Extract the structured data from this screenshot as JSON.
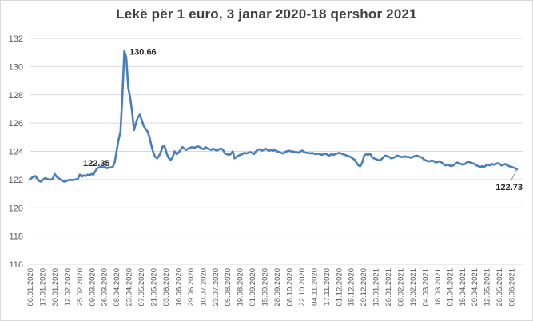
{
  "chart_data": {
    "type": "line",
    "title": "Lekë për 1 euro, 3 janar 2020-18 qershor 2021",
    "xlabel": "",
    "ylabel": "",
    "ylim": [
      116,
      132
    ],
    "yticks": [
      116,
      118,
      120,
      122,
      124,
      126,
      128,
      130,
      132
    ],
    "grid": true,
    "series_color": "#4a7ebb",
    "x_tick_labels": [
      "06.01.2020",
      "17.01.2020",
      "30.01.2020",
      "12.02.2020",
      "25.02.2020",
      "09.03.2020",
      "26.03.2020",
      "08.04.2020",
      "23.04.2020",
      "07.05.2020",
      "21.05.2020",
      "03.06.2020",
      "16.06.2020",
      "29.06.2020",
      "10.07.2020",
      "23.07.2020",
      "05.08.2020",
      "19.08.2020",
      "01.09.2020",
      "15.09.2020",
      "28.09.2020",
      "08.10.2020",
      "22.10.2020",
      "04.11.2020",
      "17.11.2020",
      "01.12.2020",
      "15.12.2020",
      "29.12.2020",
      "13.01.2021",
      "26.01.2021",
      "08.02.2021",
      "19.02.2021",
      "04.03.2021",
      "18.03.2021",
      "01.04.2021",
      "15.04.2021",
      "29.04.2021",
      "12.05.2021",
      "26.05.2021",
      "08.06.2021"
    ],
    "annotations": [
      {
        "label": "130.66",
        "x": "26.03.2020"
      },
      {
        "label": "122.35",
        "x": "06.03.2020"
      },
      {
        "label": "122.73",
        "x": "18.06.2021"
      }
    ],
    "series": [
      {
        "values": [
          122.0,
          122.1,
          122.2,
          122.25,
          122.05,
          121.9,
          121.85,
          122.0,
          122.1,
          122.05,
          122.0,
          122.0,
          122.05,
          122.4,
          122.2,
          122.1,
          122.0,
          121.9,
          121.85,
          121.9,
          121.95,
          122.0,
          121.95,
          122.0,
          122.0,
          122.05,
          122.35,
          122.2,
          122.3,
          122.25,
          122.35,
          122.3,
          122.4,
          122.35,
          122.6,
          122.8,
          122.85,
          122.9,
          122.85,
          122.9,
          122.8,
          122.85,
          122.85,
          122.9,
          123.2,
          124.0,
          124.8,
          125.4,
          128.0,
          131.1,
          130.66,
          128.5,
          127.8,
          126.8,
          125.5,
          126.0,
          126.4,
          126.6,
          126.2,
          125.8,
          125.6,
          125.4,
          125.0,
          124.4,
          123.9,
          123.6,
          123.5,
          123.7,
          124.0,
          124.4,
          124.3,
          123.8,
          123.5,
          123.4,
          123.6,
          124.0,
          123.8,
          123.9,
          124.1,
          124.3,
          124.2,
          124.1,
          124.2,
          124.25,
          124.3,
          124.25,
          124.3,
          124.35,
          124.3,
          124.2,
          124.15,
          124.3,
          124.2,
          124.15,
          124.1,
          124.2,
          124.1,
          124.05,
          124.15,
          124.2,
          124.1,
          123.85,
          123.8,
          123.75,
          123.8,
          124.0,
          123.5,
          123.6,
          123.7,
          123.75,
          123.8,
          123.9,
          123.85,
          123.9,
          123.95,
          123.9,
          123.8,
          124.0,
          124.1,
          124.15,
          124.05,
          124.1,
          124.2,
          124.1,
          124.05,
          124.1,
          124.05,
          124.1,
          124.0,
          123.95,
          123.9,
          123.85,
          123.95,
          124.0,
          124.05,
          124.0,
          124.0,
          123.95,
          123.95,
          123.9,
          124.0,
          124.05,
          123.95,
          123.9,
          123.9,
          123.85,
          123.9,
          123.85,
          123.8,
          123.85,
          123.8,
          123.75,
          123.8,
          123.85,
          123.75,
          123.7,
          123.8,
          123.75,
          123.8,
          123.85,
          123.9,
          123.85,
          123.8,
          123.75,
          123.7,
          123.65,
          123.6,
          123.5,
          123.4,
          123.2,
          123.0,
          122.95,
          123.2,
          123.7,
          123.8,
          123.75,
          123.85,
          123.6,
          123.5,
          123.45,
          123.4,
          123.35,
          123.45,
          123.6,
          123.7,
          123.65,
          123.6,
          123.5,
          123.55,
          123.6,
          123.7,
          123.65,
          123.6,
          123.6,
          123.65,
          123.6,
          123.6,
          123.55,
          123.6,
          123.65,
          123.7,
          123.65,
          123.6,
          123.55,
          123.4,
          123.35,
          123.3,
          123.3,
          123.35,
          123.3,
          123.2,
          123.25,
          123.3,
          123.2,
          123.1,
          123.0,
          123.05,
          123.0,
          122.95,
          123.0,
          123.1,
          123.2,
          123.15,
          123.1,
          123.05,
          123.1,
          123.2,
          123.25,
          123.2,
          123.15,
          123.1,
          123.0,
          122.95,
          122.9,
          122.95,
          122.9,
          123.0,
          123.05,
          123.0,
          123.1,
          123.05,
          123.1,
          123.15,
          123.1,
          123.0,
          123.05,
          123.1,
          123.0,
          122.95,
          122.9,
          122.85,
          122.8,
          122.73
        ]
      }
    ]
  }
}
